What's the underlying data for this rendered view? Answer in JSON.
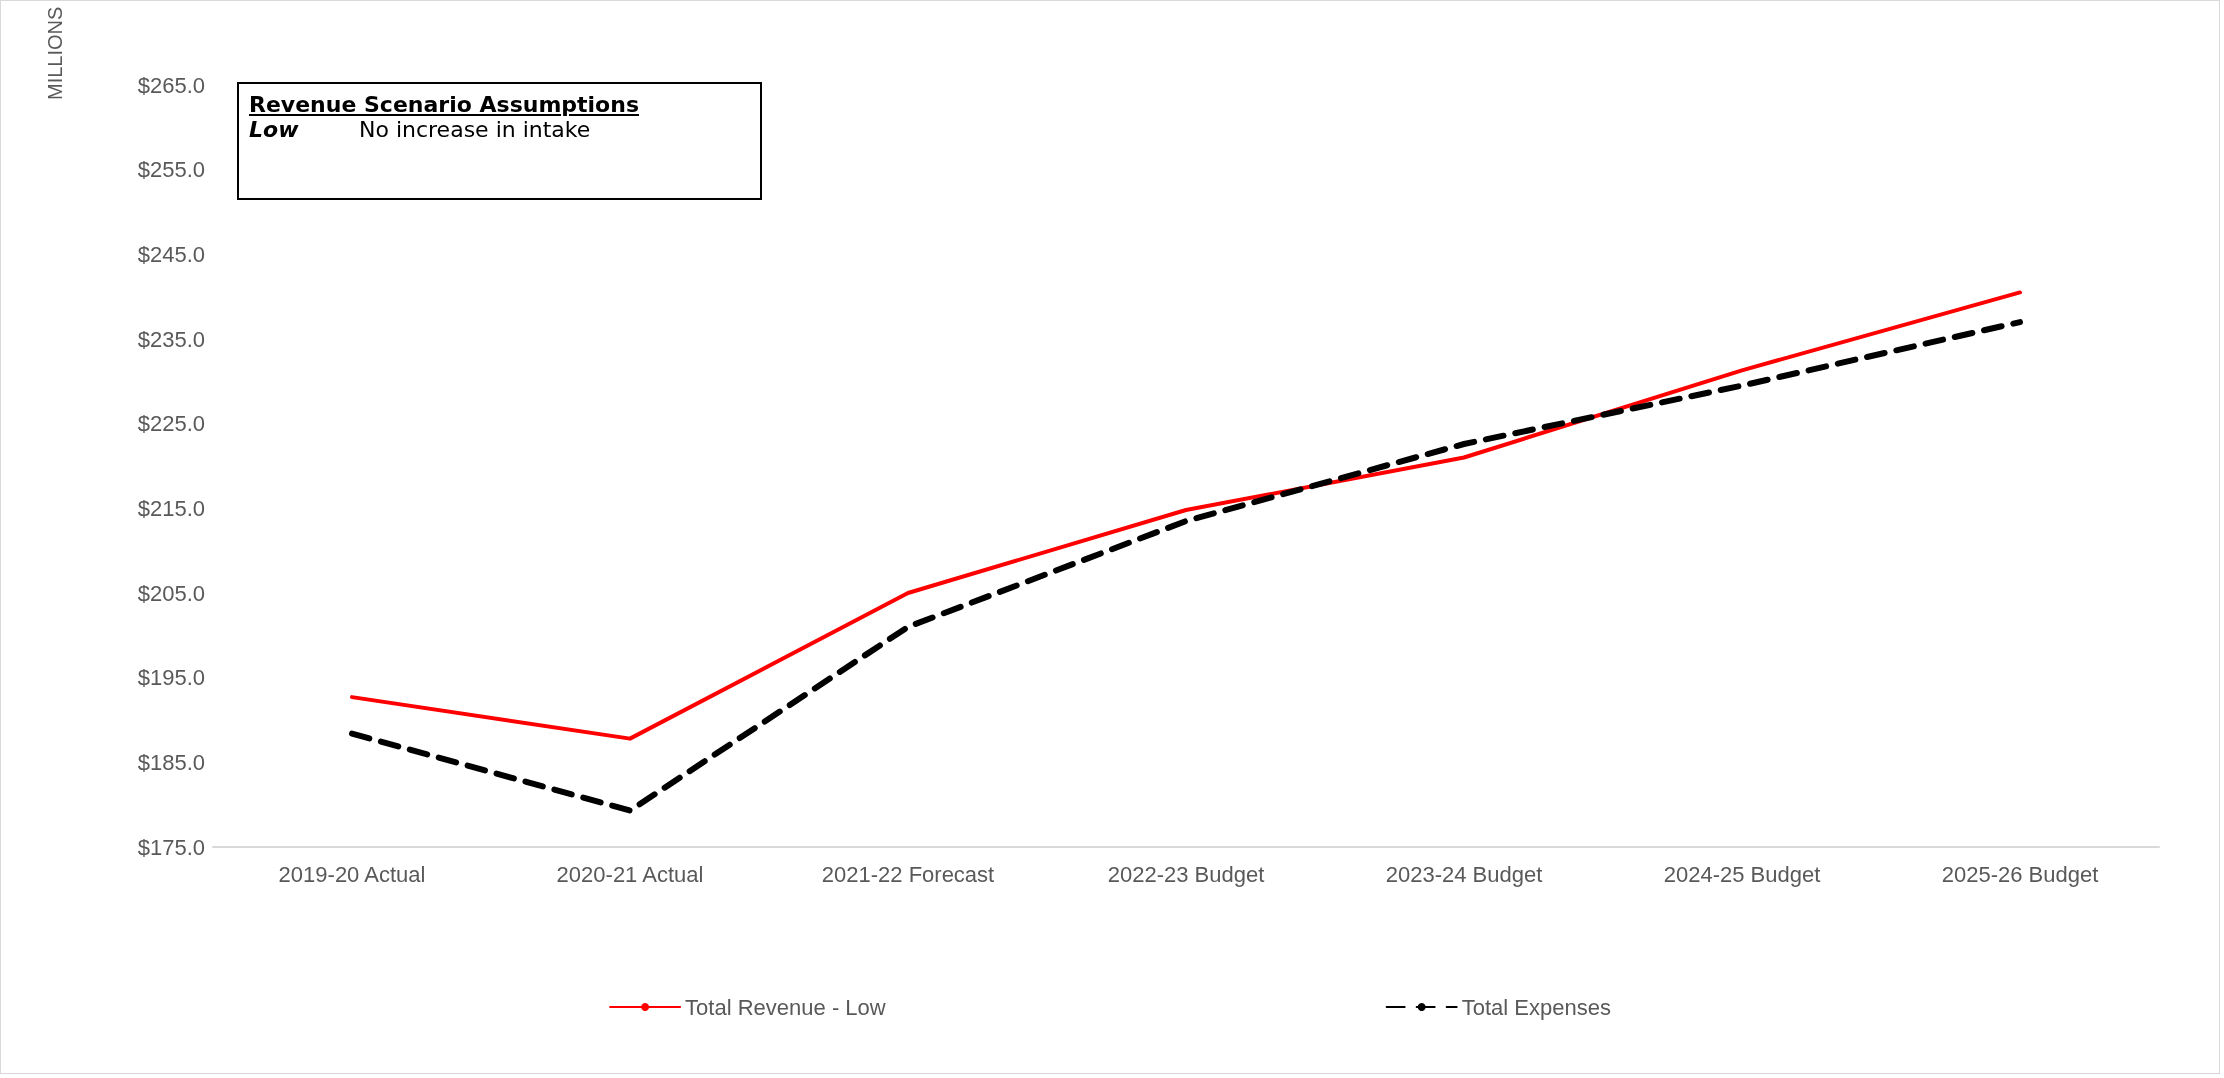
{
  "chart_data": {
    "type": "line",
    "ylabel": "MILLIONS",
    "annotations": [
      "Revenue Scenario Assumptions",
      "Low",
      "No increase in intake"
    ],
    "categories": [
      "2019-20 Actual",
      "2020-21 Actual",
      "2021-22 Forecast",
      "2022-23 Budget",
      "2023-24 Budget",
      "2024-25 Budget",
      "2025-26 Budget"
    ],
    "series": [
      {
        "name": "Total Revenue - Low",
        "color": "#ff0000",
        "line_style": "solid",
        "values": [
          192.7,
          187.8,
          205.0,
          214.8,
          221.0,
          231.3,
          240.5
        ]
      },
      {
        "name": "Total Expenses",
        "color": "#000000",
        "line_style": "dashed",
        "values": [
          188.4,
          179.3,
          201.0,
          213.5,
          222.6,
          229.5,
          237.0
        ]
      }
    ],
    "ylim": [
      175,
      265
    ],
    "yticks": [
      {
        "value": 175,
        "label": "$175.0"
      },
      {
        "value": 185,
        "label": "$185.0"
      },
      {
        "value": 195,
        "label": "$195.0"
      },
      {
        "value": 205,
        "label": "$205.0"
      },
      {
        "value": 215,
        "label": "$215.0"
      },
      {
        "value": 225,
        "label": "$225.0"
      },
      {
        "value": 235,
        "label": "$235.0"
      },
      {
        "value": 245,
        "label": "$245.0"
      },
      {
        "value": 255,
        "label": "$255.0"
      },
      {
        "value": 265,
        "label": "$265.0"
      }
    ],
    "grid": false,
    "legend": "bottom",
    "marker": "none"
  }
}
